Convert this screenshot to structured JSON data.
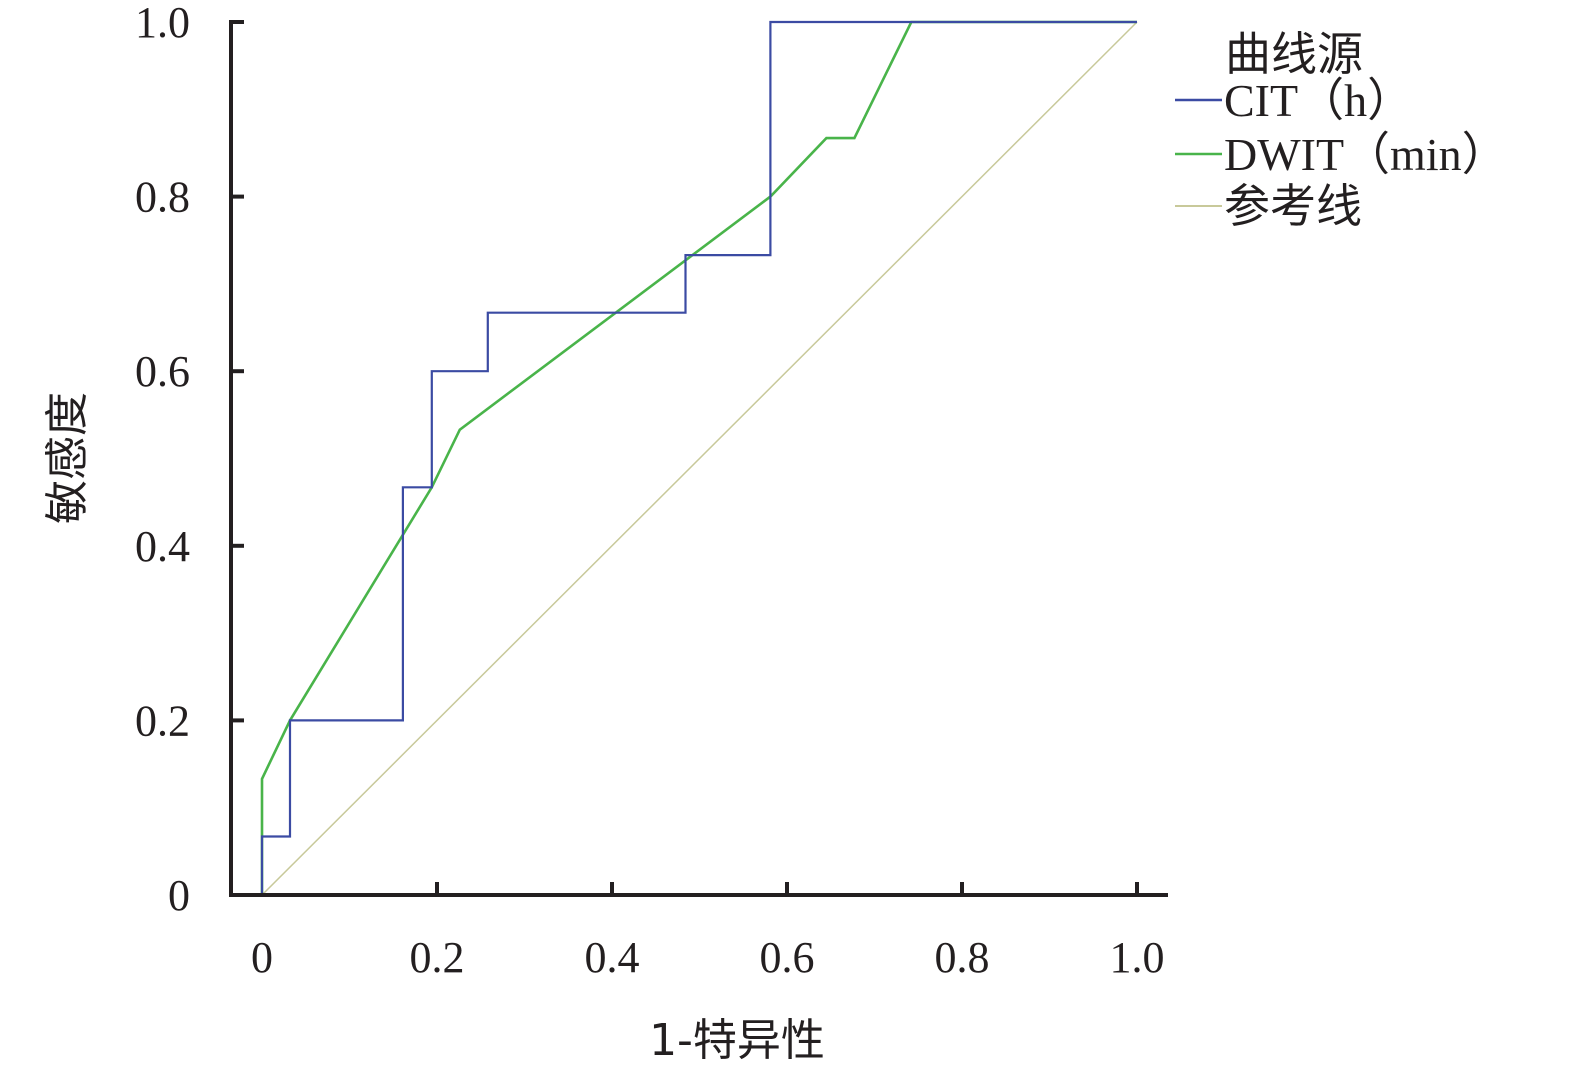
{
  "chart_data": {
    "type": "line",
    "title": "",
    "xlabel": "1-特异性",
    "ylabel": "敏感度",
    "xlim": [
      0,
      1
    ],
    "ylim": [
      0,
      1
    ],
    "x_ticks": [
      "0",
      "0.2",
      "0.4",
      "0.6",
      "0.8",
      "1.0"
    ],
    "y_ticks": [
      "0",
      "0.2",
      "0.4",
      "0.6",
      "0.8",
      "1.0"
    ],
    "grid": false,
    "legend_title": "曲线源",
    "legend_position": "top-right",
    "series": [
      {
        "name": "CIT（h）",
        "color": "#3b4ba3",
        "style": "step",
        "x": [
          0,
          0,
          0.032,
          0.032,
          0.161,
          0.161,
          0.194,
          0.194,
          0.258,
          0.258,
          0.484,
          0.484,
          0.581,
          0.581,
          1.0
        ],
        "y": [
          0,
          0.067,
          0.067,
          0.2,
          0.2,
          0.467,
          0.467,
          0.6,
          0.6,
          0.667,
          0.667,
          0.733,
          0.733,
          1.0,
          1.0
        ]
      },
      {
        "name": "DWIT（min）",
        "color": "#49b44a",
        "style": "line",
        "x": [
          0,
          0,
          0.032,
          0.194,
          0.226,
          0.581,
          0.645,
          0.677,
          0.742,
          1.0
        ],
        "y": [
          0,
          0.133,
          0.2,
          0.467,
          0.533,
          0.8,
          0.867,
          0.867,
          1.0,
          1.0
        ]
      },
      {
        "name": "参考线",
        "color": "#c8c99a",
        "style": "line",
        "x": [
          0,
          1
        ],
        "y": [
          0,
          1
        ]
      }
    ]
  }
}
